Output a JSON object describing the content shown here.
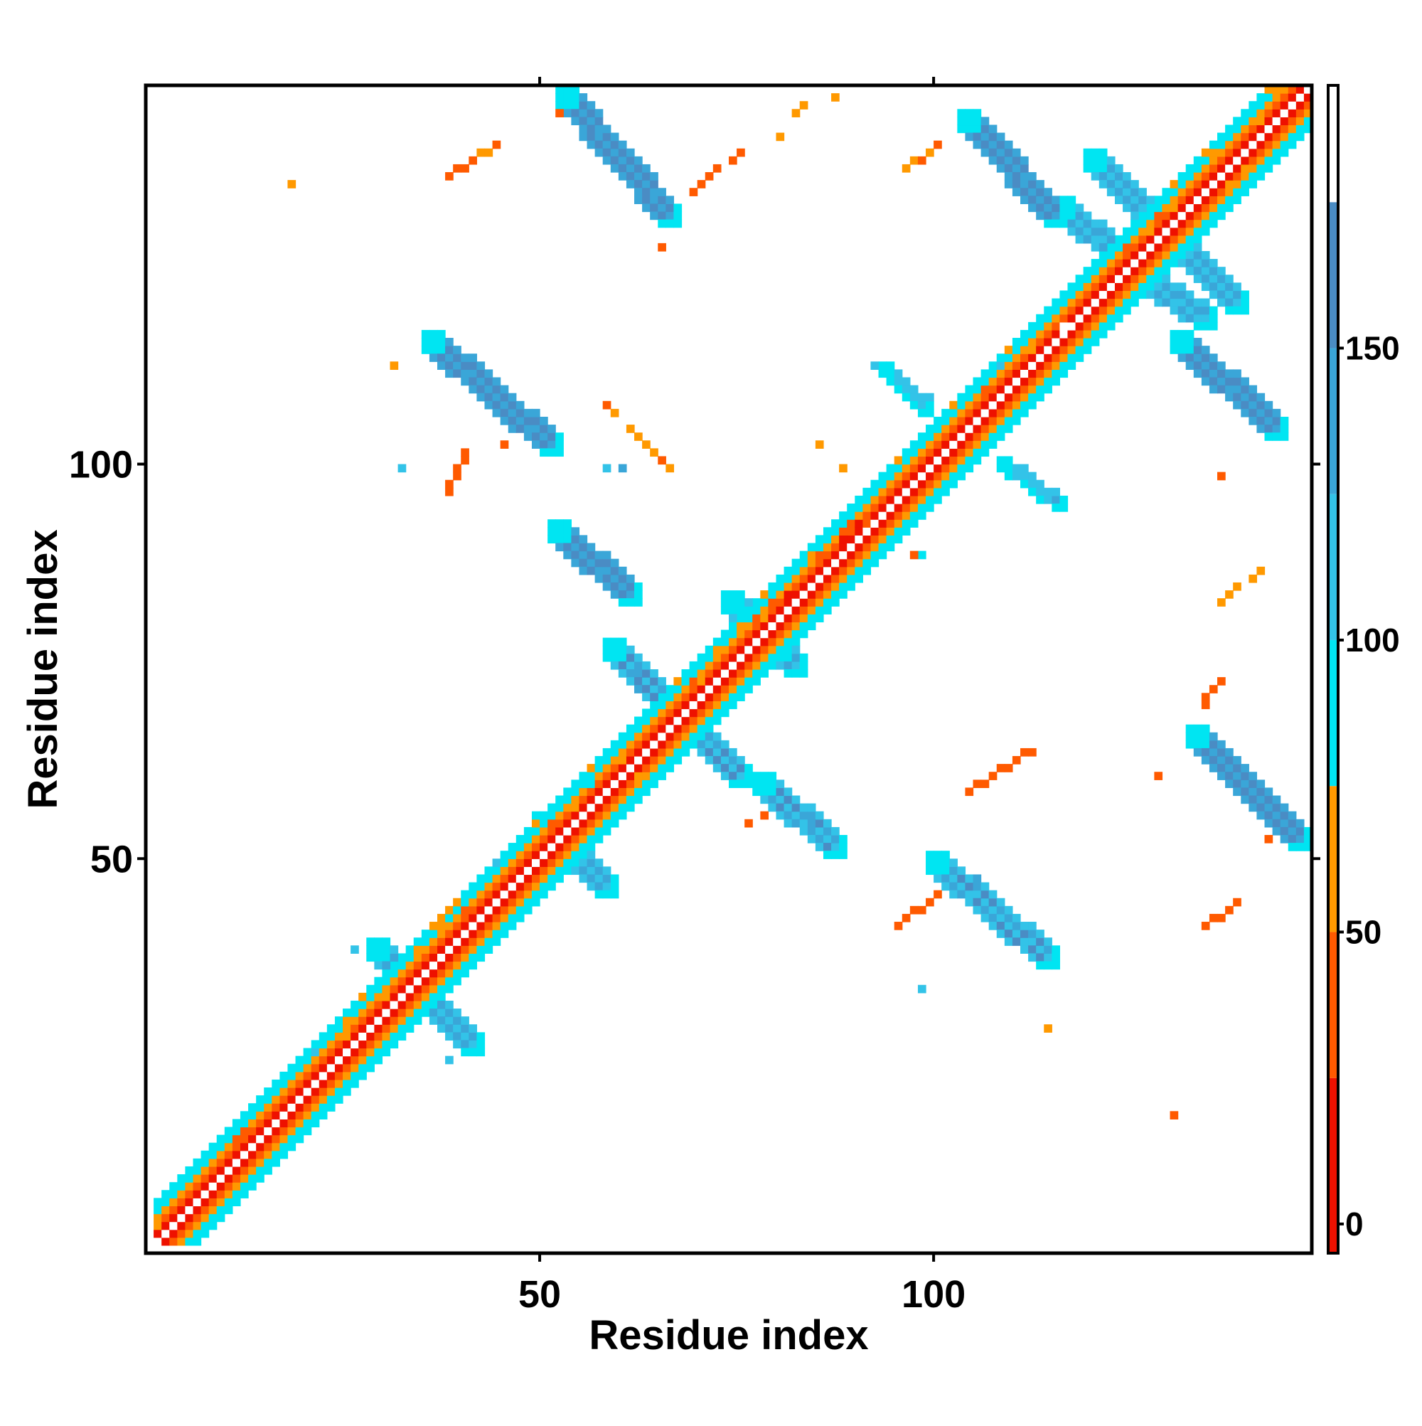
{
  "chart_data": {
    "type": "heatmap",
    "title": "",
    "xlabel": "Residue index",
    "ylabel": "Residue index",
    "xlim": [
      0,
      148
    ],
    "ylim": [
      0,
      148
    ],
    "x_ticks": [
      50,
      100
    ],
    "y_ticks": [
      50,
      100
    ],
    "grid": false,
    "colorbar": {
      "position": "right",
      "range": [
        -5,
        195
      ],
      "ticks": [
        0,
        50,
        100,
        150
      ],
      "bands": [
        {
          "from": -5,
          "to": 25,
          "color": "#ee1100"
        },
        {
          "from": 25,
          "to": 50,
          "color": "#ff5a00"
        },
        {
          "from": 50,
          "to": 75,
          "color": "#ff9900"
        },
        {
          "from": 75,
          "to": 100,
          "color": "#00e5f2"
        },
        {
          "from": 100,
          "to": 125,
          "color": "#33c3e8"
        },
        {
          "from": 125,
          "to": 150,
          "color": "#3aa6d8"
        },
        {
          "from": 150,
          "to": 175,
          "color": "#4a8cc4"
        },
        {
          "from": 175,
          "to": 195,
          "color": "#ffffff"
        }
      ]
    },
    "segments": [
      {
        "x0": 1,
        "y0": 1,
        "x1": 147,
        "y1": 147,
        "value": 40,
        "kind": "diag",
        "w": 5
      },
      {
        "x0": 29,
        "y0": 38,
        "x1": 41,
        "y1": 26,
        "value": 140,
        "kind": "cross",
        "w": 3
      },
      {
        "x0": 50,
        "y0": 54,
        "x1": 58,
        "y1": 46,
        "value": 140,
        "kind": "cross",
        "w": 3
      },
      {
        "x0": 59,
        "y0": 76,
        "x1": 75,
        "y1": 60,
        "value": 150,
        "kind": "cross",
        "w": 3
      },
      {
        "x0": 74,
        "y0": 82,
        "x1": 82,
        "y1": 74,
        "value": 130,
        "kind": "cross",
        "w": 3
      },
      {
        "x0": 102,
        "y0": 105,
        "x1": 105,
        "y1": 102,
        "value": 120,
        "kind": "cross",
        "w": 3
      },
      {
        "x0": 120,
        "y0": 138,
        "x1": 138,
        "y1": 120,
        "value": 145,
        "kind": "cross",
        "w": 3
      },
      {
        "x0": 53,
        "y0": 146,
        "x1": 66,
        "y1": 131,
        "value": 160,
        "kind": "strand",
        "w": 3
      },
      {
        "x0": 104,
        "y0": 143,
        "x1": 115,
        "y1": 131,
        "value": 160,
        "kind": "strand",
        "w": 3
      },
      {
        "x0": 116,
        "y0": 132,
        "x1": 124,
        "y1": 125,
        "value": 140,
        "kind": "strand",
        "w": 3
      },
      {
        "x0": 125,
        "y0": 124,
        "x1": 134,
        "y1": 118,
        "value": 140,
        "kind": "strand",
        "w": 3
      },
      {
        "x0": 36,
        "y0": 115,
        "x1": 51,
        "y1": 102,
        "value": 160,
        "kind": "strand",
        "w": 3
      },
      {
        "x0": 52,
        "y0": 91,
        "x1": 61,
        "y1": 83,
        "value": 160,
        "kind": "strand",
        "w": 3
      },
      {
        "x0": 78,
        "y0": 59,
        "x1": 87,
        "y1": 51,
        "value": 150,
        "kind": "strand",
        "w": 3
      },
      {
        "x0": 100,
        "y0": 49,
        "x1": 114,
        "y1": 37,
        "value": 150,
        "kind": "strand",
        "w": 3
      },
      {
        "x0": 133,
        "y0": 65,
        "x1": 146,
        "y1": 52,
        "value": 160,
        "kind": "strand",
        "w": 3
      },
      {
        "x0": 131,
        "y0": 115,
        "x1": 143,
        "y1": 104,
        "value": 160,
        "kind": "strand",
        "w": 3
      },
      {
        "x0": 94,
        "y0": 112,
        "x1": 99,
        "y1": 107,
        "value": 110,
        "kind": "strand",
        "w": 2
      },
      {
        "x0": 109,
        "y0": 100,
        "x1": 116,
        "y1": 95,
        "value": 120,
        "kind": "strand",
        "w": 2
      },
      {
        "x0": 58,
        "y0": 107,
        "x1": 66,
        "y1": 99,
        "value": 55,
        "kind": "sparse",
        "w": 1
      },
      {
        "x0": 38,
        "y0": 136,
        "x1": 44,
        "y1": 140,
        "value": 45,
        "kind": "sparse",
        "w": 1
      },
      {
        "x0": 75,
        "y0": 53,
        "x1": 80,
        "y1": 57,
        "value": 40,
        "kind": "sparse",
        "w": 1
      },
      {
        "x0": 104,
        "y0": 58,
        "x1": 113,
        "y1": 64,
        "value": 40,
        "kind": "sparse",
        "w": 1
      },
      {
        "x0": 94,
        "y0": 40,
        "x1": 100,
        "y1": 45,
        "value": 35,
        "kind": "sparse",
        "w": 1
      },
      {
        "x0": 133,
        "y0": 40,
        "x1": 138,
        "y1": 44,
        "value": 40,
        "kind": "sparse",
        "w": 1
      },
      {
        "x0": 132,
        "y0": 67,
        "x1": 136,
        "y1": 72,
        "value": 40,
        "kind": "sparse",
        "w": 1
      },
      {
        "x0": 38,
        "y0": 96,
        "x1": 40,
        "y1": 101,
        "value": 35,
        "kind": "sparse",
        "w": 1
      },
      {
        "x0": 80,
        "y0": 141,
        "x1": 84,
        "y1": 146,
        "value": 60,
        "kind": "sparse",
        "w": 1
      },
      {
        "x0": 69,
        "y0": 134,
        "x1": 75,
        "y1": 139,
        "value": 40,
        "kind": "sparse",
        "w": 1
      },
      {
        "x0": 95,
        "y0": 136,
        "x1": 100,
        "y1": 140,
        "value": 50,
        "kind": "sparse",
        "w": 1
      },
      {
        "x0": 136,
        "y0": 82,
        "x1": 141,
        "y1": 86,
        "value": 55,
        "kind": "sparse",
        "w": 1
      },
      {
        "x0": 92,
        "y0": 112,
        "x1": 97,
        "y1": 109,
        "value": 95,
        "kind": "sparse",
        "w": 1
      }
    ],
    "points": [
      {
        "x": 18,
        "y": 135,
        "value": 60
      },
      {
        "x": 31,
        "y": 112,
        "value": 55
      },
      {
        "x": 32,
        "y": 99,
        "value": 110
      },
      {
        "x": 65,
        "y": 127,
        "value": 45
      },
      {
        "x": 52,
        "y": 144,
        "value": 40
      },
      {
        "x": 88,
        "y": 99,
        "value": 60
      },
      {
        "x": 98,
        "y": 88,
        "value": 90
      },
      {
        "x": 97,
        "y": 88,
        "value": 45
      },
      {
        "x": 114,
        "y": 28,
        "value": 60
      },
      {
        "x": 130,
        "y": 17,
        "value": 45
      },
      {
        "x": 128,
        "y": 60,
        "value": 40
      },
      {
        "x": 142,
        "y": 52,
        "value": 35
      },
      {
        "x": 98,
        "y": 33,
        "value": 100
      },
      {
        "x": 38,
        "y": 24,
        "value": 100
      },
      {
        "x": 26,
        "y": 38,
        "value": 100
      },
      {
        "x": 85,
        "y": 102,
        "value": 55
      },
      {
        "x": 87,
        "y": 146,
        "value": 55
      },
      {
        "x": 136,
        "y": 98,
        "value": 35
      },
      {
        "x": 45,
        "y": 102,
        "value": 40
      },
      {
        "x": 58,
        "y": 99,
        "value": 120
      },
      {
        "x": 60,
        "y": 99,
        "value": 130
      },
      {
        "x": 99,
        "y": 108,
        "value": 110
      }
    ]
  }
}
